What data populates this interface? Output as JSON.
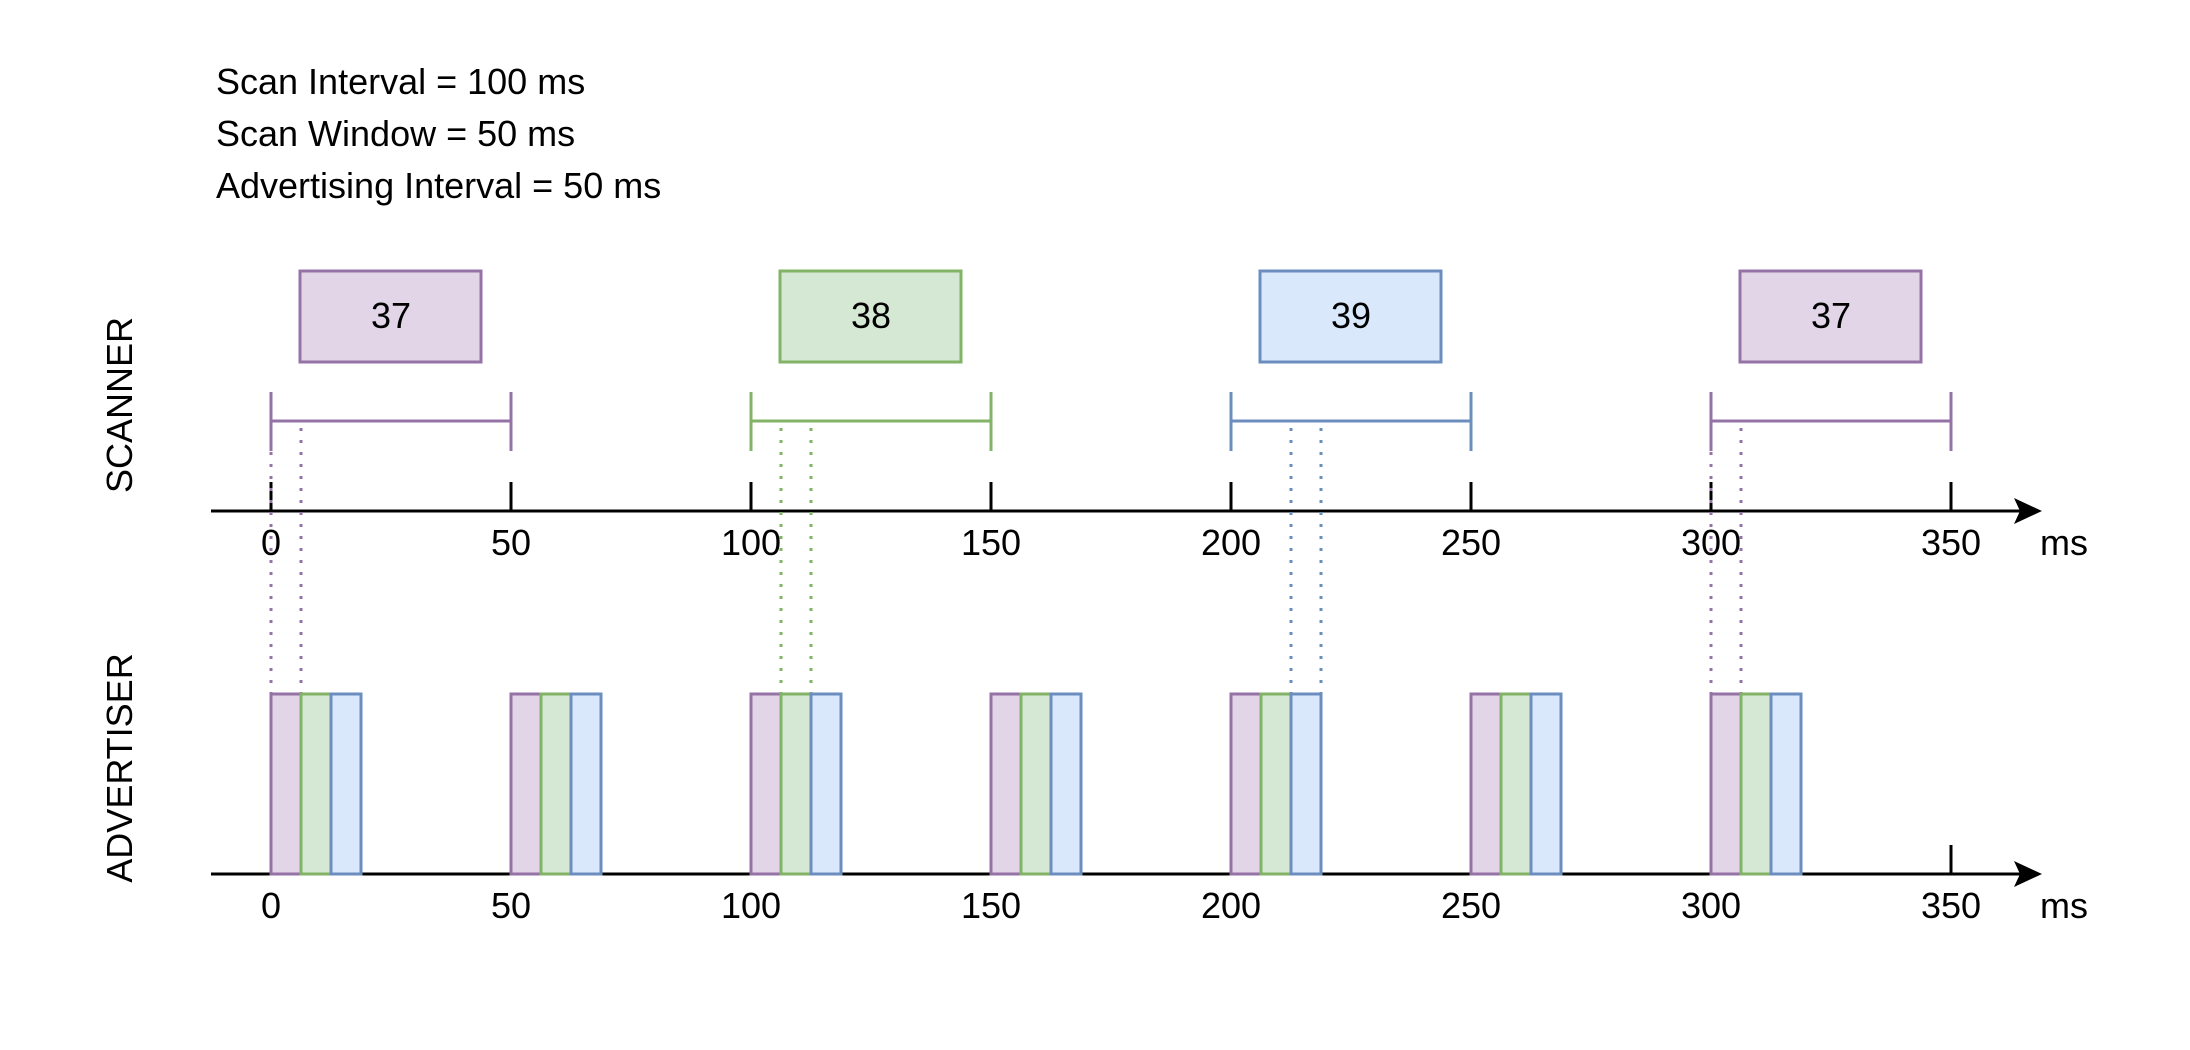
{
  "parameters": [
    "Scan Interval = 100 ms",
    "Scan Window = 50 ms",
    "Advertising Interval = 50 ms"
  ],
  "colors": {
    "37": {
      "stroke": "#9673a6",
      "fill": "#e1d5e7"
    },
    "38": {
      "stroke": "#82b366",
      "fill": "#d5e8d4"
    },
    "39": {
      "stroke": "#6c8ebf",
      "fill": "#dae8fc"
    }
  },
  "scanner": {
    "label": "SCANNER",
    "axis_ticks": [
      0,
      50,
      100,
      150,
      200,
      250,
      300,
      350
    ],
    "unit": "ms",
    "windows": [
      {
        "channel": "37",
        "start": 0,
        "end": 50
      },
      {
        "channel": "38",
        "start": 100,
        "end": 150
      },
      {
        "channel": "39",
        "start": 200,
        "end": 250
      },
      {
        "channel": "37",
        "start": 300,
        "end": 350
      }
    ]
  },
  "advertiser": {
    "label": "ADVERTISER",
    "axis_ticks": [
      0,
      50,
      100,
      150,
      200,
      250,
      300,
      350
    ],
    "unit": "ms",
    "events": [
      0,
      50,
      100,
      150,
      200,
      250,
      300
    ],
    "channels": [
      "37",
      "38",
      "39"
    ]
  }
}
